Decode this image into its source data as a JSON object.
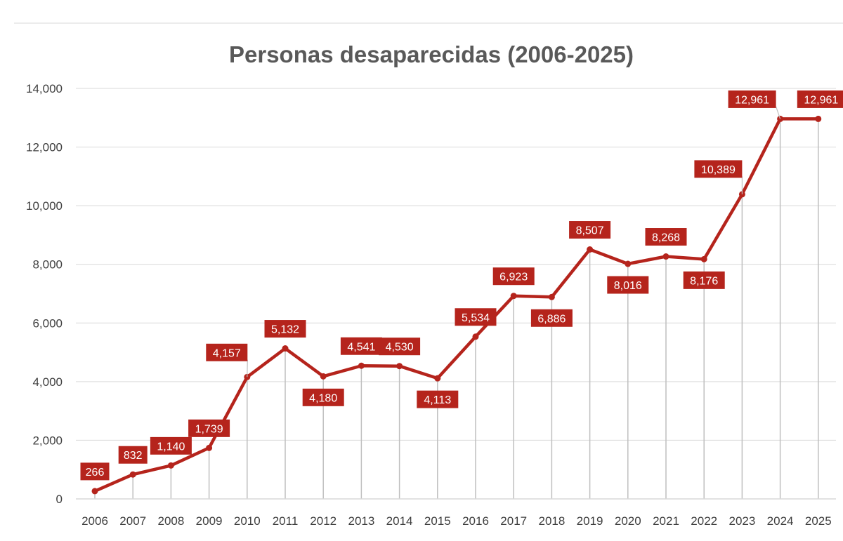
{
  "chart_data": {
    "type": "line",
    "title": "Personas desaparecidas (2006-2025)",
    "xlabel": "",
    "ylabel": "",
    "categories": [
      "2006",
      "2007",
      "2008",
      "2009",
      "2010",
      "2011",
      "2012",
      "2013",
      "2014",
      "2015",
      "2016",
      "2017",
      "2018",
      "2019",
      "2020",
      "2021",
      "2022",
      "2023",
      "2024",
      "2025"
    ],
    "series": [
      {
        "values": [
          266,
          832,
          1140,
          1739,
          4157,
          5132,
          4180,
          4541,
          4530,
          4113,
          5534,
          6923,
          6886,
          8507,
          8016,
          8268,
          8176,
          10389,
          12961,
          12961
        ],
        "data_labels": [
          "266",
          "832",
          "1,140",
          "1,739",
          "4,157",
          "5,132",
          "4,180",
          "4,541",
          "4,530",
          "4,113",
          "5,534",
          "6,923",
          "6,886",
          "8,507",
          "8,016",
          "8,268",
          "8,176",
          "10,389",
          "12,961",
          "12,961"
        ],
        "label_positions": [
          "above",
          "above",
          "above",
          "above",
          "above",
          "above",
          "below",
          "above",
          "above",
          "below",
          "above",
          "above",
          "below",
          "above",
          "below",
          "above",
          "below",
          "above",
          "above",
          "above"
        ]
      }
    ],
    "ylim": [
      0,
      14000
    ],
    "y_ticks": [
      0,
      2000,
      4000,
      6000,
      8000,
      10000,
      12000,
      14000
    ],
    "y_tick_labels": [
      "0",
      "2,000",
      "4,000",
      "6,000",
      "8,000",
      "10,000",
      "12,000",
      "14,000"
    ],
    "grid": true,
    "drop_lines": true,
    "legend": "none",
    "colors": {
      "line": "#b5241c",
      "label_bg": "#b5241c",
      "label_text": "#ffffff",
      "grid": "#d9d9d9",
      "drop_line": "#bfbfbf",
      "title": "#595959",
      "tick_text": "#404040"
    }
  }
}
